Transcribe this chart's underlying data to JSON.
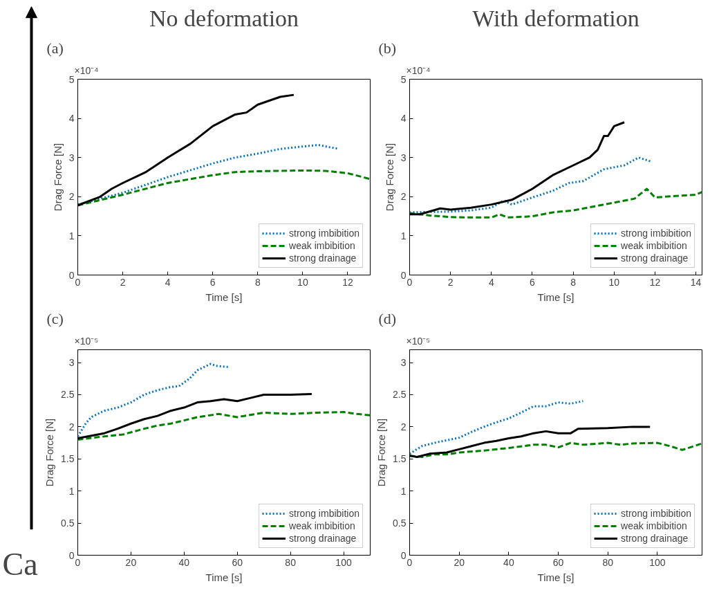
{
  "chart_data": [
    {
      "type": "line",
      "title": "No deformation",
      "annotations": [
        "(a)",
        "×10⁻⁴"
      ],
      "xlabel": "Time [s]",
      "ylabel": "Drag Force [N]",
      "xlim": [
        0,
        13
      ],
      "xticks": [
        0,
        2,
        4,
        6,
        8,
        10,
        12
      ],
      "ylim": [
        0,
        5
      ],
      "yticks": [
        0,
        1,
        2,
        3,
        4,
        5
      ],
      "grid": false,
      "legend": "bottom right",
      "series": [
        {
          "name": "strong imbibition",
          "color": "#0072bd",
          "line_style": "dotted",
          "x": [
            0,
            2,
            4,
            6,
            7,
            8,
            9,
            10,
            10.7,
            11.6
          ],
          "values": [
            1.8,
            2.1,
            2.5,
            2.85,
            3.0,
            3.1,
            3.22,
            3.28,
            3.32,
            3.22
          ]
        },
        {
          "name": "weak imbibition",
          "color": "#008000",
          "line_style": "dashed",
          "x": [
            0,
            2,
            4,
            6,
            7,
            8,
            10,
            11,
            12,
            13
          ],
          "values": [
            1.78,
            2.05,
            2.35,
            2.55,
            2.63,
            2.65,
            2.67,
            2.66,
            2.6,
            2.45
          ]
        },
        {
          "name": "strong drainage",
          "color": "#000000",
          "line_style": "solid",
          "x": [
            0,
            1,
            1.5,
            2,
            3,
            4,
            5,
            6,
            7,
            7.5,
            8,
            9,
            9.6
          ],
          "values": [
            1.78,
            2.0,
            2.2,
            2.35,
            2.62,
            3.0,
            3.35,
            3.8,
            4.1,
            4.15,
            4.35,
            4.55,
            4.6
          ]
        }
      ]
    },
    {
      "type": "line",
      "title": "With deformation",
      "annotations": [
        "(b)",
        "×10⁻⁴"
      ],
      "xlabel": "Time [s]",
      "ylabel": "Drag Force [N]",
      "xlim": [
        0,
        14.3
      ],
      "xticks": [
        0,
        2,
        4,
        6,
        8,
        10,
        12,
        14
      ],
      "ylim": [
        0,
        5
      ],
      "yticks": [
        0,
        1,
        2,
        3,
        4,
        5
      ],
      "grid": false,
      "legend": "bottom right",
      "series": [
        {
          "name": "strong imbibition",
          "color": "#0072bd",
          "line_style": "dotted",
          "x": [
            0,
            2,
            3,
            4,
            4.6,
            5,
            6,
            7,
            7.8,
            8.5,
            9.5,
            10.5,
            11.2,
            11.8
          ],
          "values": [
            1.6,
            1.62,
            1.65,
            1.72,
            1.9,
            1.8,
            1.98,
            2.15,
            2.35,
            2.4,
            2.7,
            2.8,
            3.0,
            2.9
          ]
        },
        {
          "name": "weak imbibition",
          "color": "#008000",
          "line_style": "dashed",
          "x": [
            0,
            1,
            2,
            3,
            4,
            4.4,
            4.8,
            6,
            7,
            8,
            9,
            10,
            11,
            11.6,
            12,
            13,
            14,
            14.3
          ],
          "values": [
            1.58,
            1.52,
            1.48,
            1.47,
            1.47,
            1.55,
            1.47,
            1.5,
            1.6,
            1.65,
            1.75,
            1.85,
            1.95,
            2.2,
            1.98,
            2.02,
            2.05,
            2.12
          ]
        },
        {
          "name": "strong drainage",
          "color": "#000000",
          "line_style": "solid",
          "x": [
            0,
            0.5,
            1.5,
            2,
            3,
            4,
            5,
            6,
            7,
            8,
            8.8,
            9.2,
            9.5,
            9.7,
            10,
            10.5
          ],
          "values": [
            1.55,
            1.55,
            1.7,
            1.67,
            1.72,
            1.8,
            1.92,
            2.2,
            2.55,
            2.8,
            3.0,
            3.2,
            3.55,
            3.55,
            3.8,
            3.9
          ]
        }
      ]
    },
    {
      "type": "line",
      "annotations": [
        "(c)",
        "×10⁻⁵",
        "Ca"
      ],
      "xlabel": "Time [s]",
      "ylabel": "Drag Force [N]",
      "xlim": [
        0,
        110
      ],
      "xticks": [
        0,
        20,
        40,
        60,
        80,
        100
      ],
      "ylim": [
        0,
        3.2
      ],
      "yticks": [
        0,
        0.5,
        1,
        1.5,
        2,
        2.5,
        3
      ],
      "grid": false,
      "legend": "bottom right",
      "series": [
        {
          "name": "strong imbibition",
          "color": "#0072bd",
          "line_style": "dotted",
          "x": [
            0,
            3,
            5,
            10,
            15,
            20,
            25,
            30,
            35,
            38,
            42,
            45,
            50,
            52,
            57
          ],
          "values": [
            1.85,
            2.05,
            2.15,
            2.25,
            2.3,
            2.38,
            2.5,
            2.57,
            2.62,
            2.63,
            2.75,
            2.88,
            2.98,
            2.95,
            2.93
          ]
        },
        {
          "name": "weak imbibition",
          "color": "#008000",
          "line_style": "dashed",
          "x": [
            0,
            10,
            17,
            25,
            30,
            35,
            40,
            45,
            53,
            60,
            70,
            80,
            90,
            100,
            105,
            110
          ],
          "values": [
            1.8,
            1.85,
            1.88,
            1.97,
            2.02,
            2.05,
            2.1,
            2.15,
            2.2,
            2.15,
            2.22,
            2.2,
            2.22,
            2.23,
            2.2,
            2.18
          ]
        },
        {
          "name": "strong drainage",
          "color": "#000000",
          "line_style": "solid",
          "x": [
            0,
            10,
            15,
            20,
            25,
            30,
            35,
            40,
            45,
            50,
            55,
            60,
            65,
            70,
            80,
            88
          ],
          "values": [
            1.82,
            1.9,
            1.97,
            2.05,
            2.12,
            2.17,
            2.25,
            2.3,
            2.38,
            2.4,
            2.43,
            2.4,
            2.45,
            2.5,
            2.5,
            2.51
          ]
        }
      ]
    },
    {
      "type": "line",
      "annotations": [
        "(d)",
        "×10⁻⁵"
      ],
      "xlabel": "Time [s]",
      "ylabel": "Drag Force [N]",
      "xlim": [
        0,
        118
      ],
      "xticks": [
        0,
        20,
        40,
        60,
        80,
        100
      ],
      "ylim": [
        0,
        3.2
      ],
      "yticks": [
        0,
        0.5,
        1,
        1.5,
        2,
        2.5,
        3
      ],
      "grid": false,
      "legend": "bottom right",
      "series": [
        {
          "name": "strong imbibition",
          "color": "#0072bd",
          "line_style": "dotted",
          "x": [
            0,
            5,
            10,
            20,
            25,
            30,
            35,
            40,
            45,
            50,
            55,
            60,
            65,
            70
          ],
          "values": [
            1.58,
            1.7,
            1.75,
            1.83,
            1.92,
            2.0,
            2.07,
            2.13,
            2.22,
            2.32,
            2.32,
            2.38,
            2.36,
            2.4
          ]
        },
        {
          "name": "weak imbibition",
          "color": "#008000",
          "line_style": "dashed",
          "x": [
            0,
            5,
            10,
            15,
            20,
            30,
            40,
            50,
            55,
            60,
            65,
            70,
            80,
            85,
            90,
            100,
            105,
            110,
            118
          ],
          "values": [
            1.55,
            1.53,
            1.57,
            1.57,
            1.6,
            1.63,
            1.67,
            1.72,
            1.72,
            1.68,
            1.75,
            1.72,
            1.75,
            1.72,
            1.74,
            1.75,
            1.7,
            1.64,
            1.74
          ]
        },
        {
          "name": "strong drainage",
          "color": "#000000",
          "line_style": "solid",
          "x": [
            0,
            3,
            8,
            15,
            20,
            25,
            30,
            35,
            40,
            45,
            50,
            55,
            60,
            65,
            68,
            80,
            90,
            97
          ],
          "values": [
            1.55,
            1.53,
            1.58,
            1.6,
            1.65,
            1.7,
            1.75,
            1.78,
            1.82,
            1.85,
            1.9,
            1.93,
            1.9,
            1.9,
            1.97,
            1.98,
            2.0,
            2.0
          ]
        }
      ]
    }
  ]
}
